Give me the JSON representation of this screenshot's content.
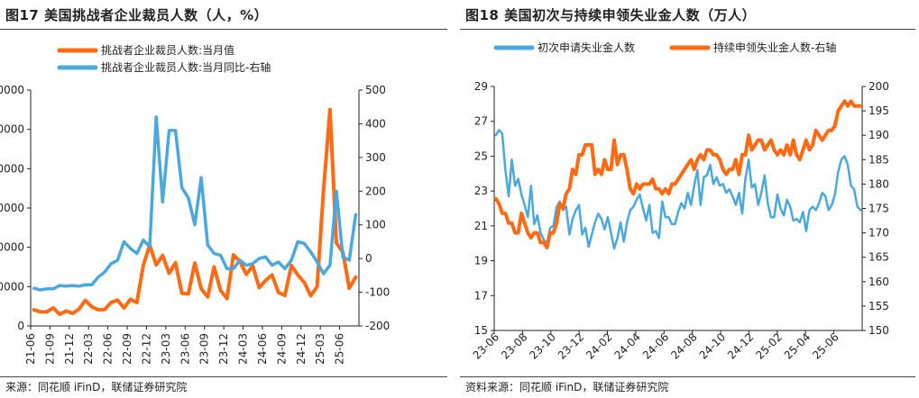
{
  "colors": {
    "orange": "#ff6a13",
    "blue": "#4aa8de",
    "axis": "#222222"
  },
  "charts": [
    {
      "title": "图17 美国挑战者企业裁员人数（人，%）",
      "source": "来源：同花顺 iFinD，联储证券研究院",
      "chart_data": {
        "type": "line",
        "title": "图17 美国挑战者企业裁员人数（人，%）",
        "legend_placement": "top-left",
        "grid": false,
        "x_ticks": [
          "21-06",
          "21-09",
          "21-12",
          "22-03",
          "22-06",
          "22-09",
          "22-12",
          "23-03",
          "23-06",
          "23-09",
          "23-12",
          "24-03",
          "24-06",
          "24-09",
          "24-12",
          "25-03",
          "25-06"
        ],
        "x_start": "2021-06",
        "left_axis": {
          "ylim": [
            0,
            300000
          ],
          "ticks": [
            0,
            50000,
            100000,
            150000,
            200000,
            250000,
            300000
          ]
        },
        "right_axis": {
          "ylim": [
            -200,
            500
          ],
          "ticks": [
            -200,
            -100,
            0,
            100,
            200,
            300,
            400,
            500
          ]
        },
        "series": [
          {
            "name": "挑战者企业裁员人数:当月值",
            "axis": "left",
            "color": "#ff6a13",
            "values": [
              20476,
              18000,
              17896,
              22910,
              14875,
              19052,
              15975,
              21387,
              32517,
              24286,
              20712,
              20944,
              29989,
              32914,
              22854,
              33843,
              29831,
              76835,
              102943,
              77770,
              89703,
              66995,
              80334,
              41557,
              40709,
              80089,
              47457,
              36836,
              75151,
              45510,
              34817,
              90309,
              82307,
              65625,
              76658,
              48786,
              57727,
              64789,
              42615,
              38792,
              76967,
              64789,
              55597,
              38410,
              49941,
              172017,
              275240,
              105441,
              93816,
              47999,
              62075
            ]
          },
          {
            "name": "挑战者企业裁员人数:当月同比-右轴",
            "axis": "right",
            "color": "#4aa8de",
            "values": [
              -88,
              -93,
              -90,
              -90,
              -80,
              -82,
              -80,
              -82,
              -78,
              -78,
              -55,
              -40,
              -15,
              -5,
              50,
              30,
              15,
              55,
              35,
              420,
              168,
              380,
              380,
              210,
              180,
              100,
              240,
              40,
              15,
              10,
              -30,
              -30,
              -5,
              -20,
              -15,
              0,
              5,
              -20,
              -10,
              -30,
              -5,
              50,
              45,
              20,
              -10,
              -45,
              -20,
              200,
              5,
              -5,
              130
            ]
          }
        ]
      }
    },
    {
      "title": "图18 美国初次与持续申领失业金人数（万人）",
      "source": "资料来源：同花顺 iFinD，联储证券研究院",
      "chart_data": {
        "type": "line",
        "title": "图18 美国初次与持续申领失业金人数（万人）",
        "legend_placement": "top",
        "grid": false,
        "x_ticks": [
          "23-06",
          "23-08",
          "23-10",
          "23-12",
          "24-02",
          "24-04",
          "24-06",
          "24-08",
          "24-10",
          "24-12",
          "25-02",
          "25-04",
          "25-06"
        ],
        "x_start": "2023-06",
        "x_end": "2025-07",
        "left_axis": {
          "ylim": [
            15,
            29
          ],
          "ticks": [
            15,
            17,
            19,
            21,
            23,
            25,
            27,
            29
          ]
        },
        "right_axis": {
          "ylim": [
            150,
            200
          ],
          "ticks": [
            150,
            155,
            160,
            165,
            170,
            175,
            180,
            185,
            190,
            195,
            200
          ]
        },
        "series": [
          {
            "name": "初次申请失业金人数",
            "axis": "left",
            "color": "#4aa8de",
            "values": [
              26.2,
              26.5,
              26.3,
              24.2,
              22.7,
              24.8,
              23.3,
              23.7,
              22.8,
              22.2,
              21.5,
              23.3,
              21.1,
              21.6,
              20.6,
              20.2,
              20.0,
              20.9,
              21.0,
              22.1,
              22.4,
              21.9,
              22.1,
              20.5,
              21.4,
              21.9,
              22.2,
              20.5,
              20.9,
              19.8,
              20.5,
              21.2,
              21.7,
              21.4,
              20.8,
              21.5,
              20.6,
              19.7,
              20.3,
              21.2,
              20.1,
              21.2,
              21.9,
              22.1,
              22.5,
              22.8,
              22.0,
              21.3,
              22.2,
              20.6,
              20.7,
              20.3,
              22.4,
              21.5,
              21.5,
              21.1,
              21.1,
              21.8,
              22.3,
              22.0,
              22.9,
              22.2,
              23.3,
              24.2,
              22.2,
              23.8,
              23.9,
              24.5,
              23.4,
              23.8,
              23.3,
              23.4,
              22.9,
              23.1,
              22.7,
              22.2,
              22.9,
              21.7,
              23.7,
              24.8,
              23.2,
              23.4,
              22.2,
              22.9,
              23.9,
              22.3,
              21.5,
              21.5,
              22.8,
              22.0,
              21.6,
              22.5,
              22.1,
              21.3,
              21.4,
              21.2,
              21.8,
              20.7,
              21.9,
              22.1,
              21.9,
              22.3,
              22.9,
              22.7,
              21.9,
              22.2,
              22.8,
              24.1,
              24.8,
              25.0,
              24.5,
              23.3,
              23.1,
              22.1,
              21.9
            ]
          },
          {
            "name": "持续申领失业金人数-右轴",
            "axis": "right",
            "color": "#ff6a13",
            "values": [
              177,
              176,
              174,
              174,
              172,
              172,
              170,
              170,
              174,
              172,
              170,
              169,
              170,
              170,
              168,
              168,
              167,
              170,
              170,
              172,
              176,
              175,
              178,
              179,
              183,
              182,
              186,
              186,
              188,
              188,
              188,
              182,
              183,
              182,
              185,
              183,
              183,
              189,
              184,
              186,
              186,
              183,
              179,
              178,
              180,
              179,
              180,
              180,
              180,
              181,
              179,
              179,
              178,
              179,
              178,
              180,
              180,
              181,
              182,
              183,
              184,
              185,
              183,
              185,
              186,
              185,
              187,
              187,
              186,
              186,
              185,
              183,
              182,
              183,
              183,
              185,
              182,
              186,
              186,
              190,
              187,
              188,
              189,
              189,
              187,
              188,
              189,
              187,
              186,
              187,
              186,
              188,
              186,
              189,
              186,
              185,
              187,
              189,
              187,
              188,
              191,
              190,
              189,
              190,
              191,
              191,
              192,
              195,
              196,
              197,
              196,
              197,
              196,
              196,
              196
            ]
          }
        ]
      }
    }
  ]
}
